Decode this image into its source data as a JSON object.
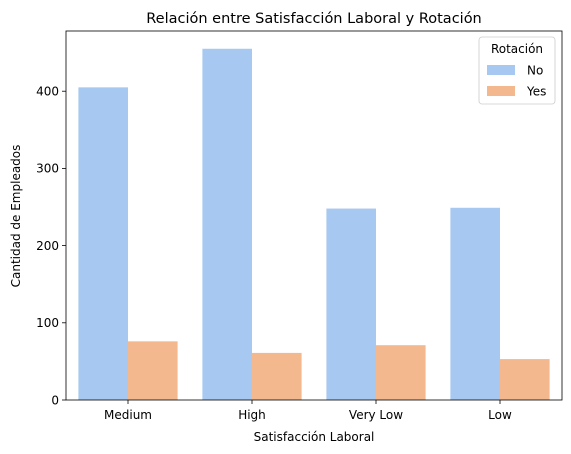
{
  "chart_data": {
    "type": "bar",
    "title": "Relación entre Satisfacción Laboral y Rotación",
    "xlabel": "Satisfacción Laboral",
    "ylabel": "Cantidad de Empleados",
    "categories": [
      "Medium",
      "High",
      "Very Low",
      "Low"
    ],
    "series": [
      {
        "name": "No",
        "color": "#a7c8f0",
        "values": [
          405,
          455,
          248,
          249
        ]
      },
      {
        "name": "Yes",
        "color": "#f4b88e",
        "values": [
          76,
          61,
          71,
          53
        ]
      }
    ],
    "yticks": [
      0,
      100,
      200,
      300,
      400
    ],
    "ylim": [
      0,
      478
    ],
    "grid": false,
    "legend": {
      "title": "Rotación",
      "placement": "top-right"
    }
  }
}
